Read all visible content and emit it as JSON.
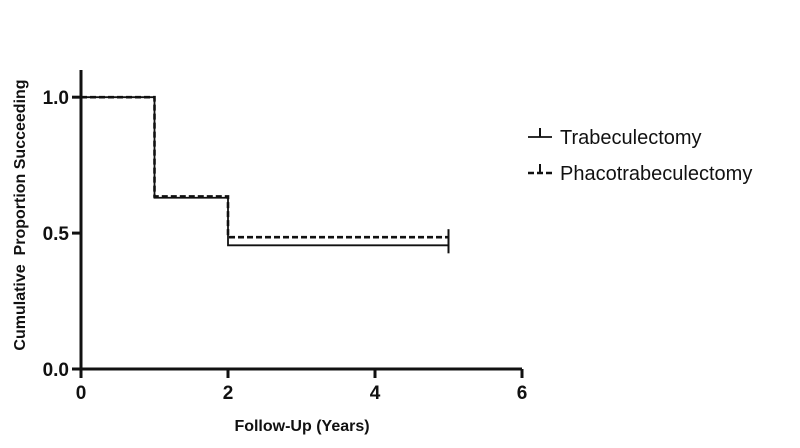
{
  "chart_data": {
    "type": "line",
    "subtype": "kaplan-meier-step",
    "title": "",
    "xlabel": "Follow-Up (Years)",
    "ylabel": "Cumulative  Proportion Succeeding",
    "xlim": [
      0,
      6
    ],
    "ylim": [
      0,
      1.1
    ],
    "xticks": [
      0,
      2,
      4,
      6
    ],
    "yticks": [
      0.0,
      0.5,
      1.0
    ],
    "xtick_labels": [
      "0",
      "2",
      "4",
      "6"
    ],
    "ytick_labels": [
      "0.0",
      "0.5",
      "1.0"
    ],
    "grid": false,
    "legend_position": "right",
    "series": [
      {
        "name": "Trabeculectomy",
        "line_style": "solid",
        "color": "#111111",
        "steps": [
          [
            0,
            1.0
          ],
          [
            1,
            0.63
          ],
          [
            2,
            0.455
          ],
          [
            5,
            0.455
          ]
        ],
        "censor_end": 5
      },
      {
        "name": "Phacotrabeculectomy",
        "line_style": "dashed",
        "color": "#111111",
        "steps": [
          [
            0,
            1.0
          ],
          [
            1,
            0.635
          ],
          [
            2,
            0.485
          ],
          [
            5,
            0.485
          ]
        ],
        "censor_end": 5
      }
    ]
  }
}
